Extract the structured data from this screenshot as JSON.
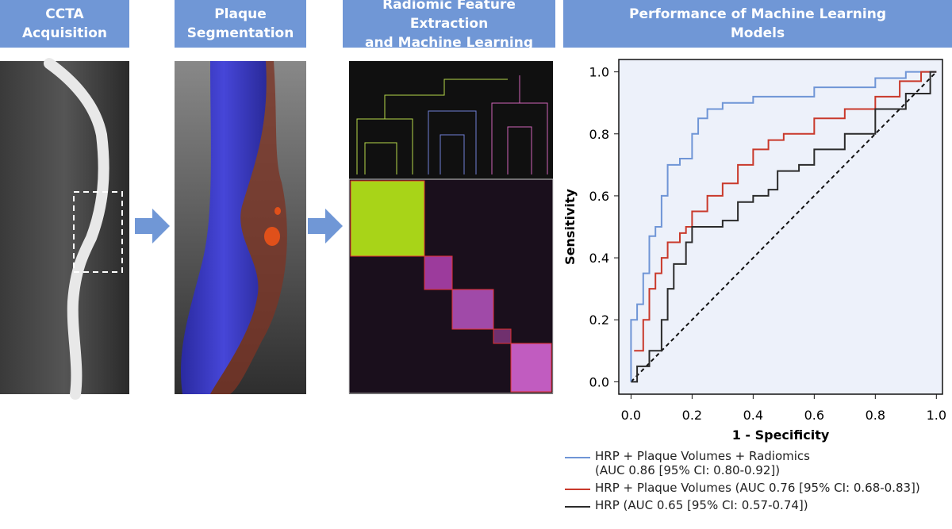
{
  "panels": [
    {
      "title": [
        "CCTA",
        "Acquisition"
      ]
    },
    {
      "title": [
        "Plaque",
        "Segmentation"
      ]
    },
    {
      "title": [
        "Radiomic Feature Extraction",
        "and Machine Learning"
      ]
    },
    {
      "title": [
        "Performance of Machine Learning",
        "Models"
      ]
    }
  ],
  "chart_data": {
    "type": "line",
    "x_label": "1 - Specificity",
    "y_label": "Sensitivity",
    "xlim": [
      -0.04,
      1.02
    ],
    "ylim": [
      -0.04,
      1.04
    ],
    "xticks": [
      {
        "value": 0,
        "label": "0.0"
      },
      0.2,
      0.4,
      0.6,
      0.8,
      {
        "value": 1,
        "label": "1.0"
      }
    ],
    "yticks": [
      {
        "value": 0,
        "label": "0.0"
      },
      0.2,
      0.4,
      0.6,
      0.8,
      {
        "value": 1,
        "label": "1.0"
      }
    ],
    "series": [
      {
        "name": "HRP + Plaque Volumes + Radiomics (AUC 0.86 [95% CI: 0.80-0.92])",
        "color": "#6f95d6",
        "x": [
          0,
          0,
          0.02,
          0.04,
          0.06,
          0.08,
          0.1,
          0.12,
          0.16,
          0.2,
          0.22,
          0.25,
          0.3,
          0.4,
          0.6,
          0.8,
          0.9,
          1
        ],
        "values": [
          0,
          0.2,
          0.25,
          0.35,
          0.47,
          0.5,
          0.6,
          0.7,
          0.72,
          0.8,
          0.85,
          0.88,
          0.9,
          0.92,
          0.95,
          0.98,
          1,
          1
        ]
      },
      {
        "name": "HRP + Plaque Volumes (AUC 0.76 [95% CI: 0.68-0.83])",
        "color": "#c9392b",
        "x": [
          0.01,
          0.04,
          0.06,
          0.08,
          0.1,
          0.12,
          0.16,
          0.18,
          0.2,
          0.25,
          0.3,
          0.35,
          0.4,
          0.45,
          0.5,
          0.6,
          0.7,
          0.8,
          0.88,
          0.95,
          1
        ],
        "values": [
          0.1,
          0.2,
          0.3,
          0.35,
          0.4,
          0.45,
          0.48,
          0.5,
          0.55,
          0.6,
          0.64,
          0.7,
          0.75,
          0.78,
          0.8,
          0.85,
          0.88,
          0.92,
          0.97,
          1,
          1
        ]
      },
      {
        "name": "HRP (AUC 0.65 [95% CI: 0.57-0.74])",
        "color": "#2b2b2b",
        "x": [
          0,
          0.02,
          0.06,
          0.1,
          0.12,
          0.14,
          0.18,
          0.2,
          0.3,
          0.35,
          0.4,
          0.45,
          0.48,
          0.55,
          0.6,
          0.7,
          0.8,
          0.9,
          0.98,
          1
        ],
        "values": [
          0,
          0.05,
          0.1,
          0.2,
          0.3,
          0.38,
          0.45,
          0.5,
          0.52,
          0.58,
          0.6,
          0.62,
          0.68,
          0.7,
          0.75,
          0.8,
          0.88,
          0.93,
          1,
          1
        ]
      }
    ]
  }
}
